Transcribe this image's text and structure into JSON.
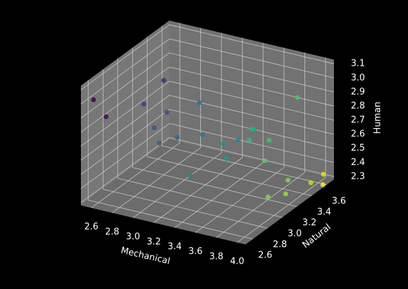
{
  "chart_data": {
    "type": "scatter3d",
    "x_label": "Mechanical",
    "y_label": "Natural",
    "z_label": "Human",
    "xlim": [
      2.5,
      4.08
    ],
    "ylim": [
      2.5,
      3.7
    ],
    "zlim": [
      2.28,
      3.13
    ],
    "xticks": [
      {
        "value": 2.6,
        "label": "2.6"
      },
      {
        "value": 2.8,
        "label": "2.8"
      },
      {
        "value": 3.0,
        "label": "3.0"
      },
      {
        "value": 3.2,
        "label": "3.2"
      },
      {
        "value": 3.4,
        "label": "3.4"
      },
      {
        "value": 3.6,
        "label": "3.6"
      },
      {
        "value": 3.8,
        "label": "3.8"
      },
      {
        "value": 4.0,
        "label": "4.0"
      }
    ],
    "yticks": [
      {
        "value": 2.6,
        "label": "2.6"
      },
      {
        "value": 2.8,
        "label": "2.8"
      },
      {
        "value": 3.0,
        "label": "3.0"
      },
      {
        "value": 3.2,
        "label": "3.2"
      },
      {
        "value": 3.4,
        "label": "3.4"
      },
      {
        "value": 3.6,
        "label": "3.6"
      }
    ],
    "zticks": [
      {
        "value": 2.3,
        "label": "2.3"
      },
      {
        "value": 2.4,
        "label": "2.4"
      },
      {
        "value": 2.5,
        "label": "2.5"
      },
      {
        "value": 2.6,
        "label": "2.6"
      },
      {
        "value": 2.7,
        "label": "2.7"
      },
      {
        "value": 2.8,
        "label": "2.8"
      },
      {
        "value": 2.9,
        "label": "2.9"
      },
      {
        "value": 3.0,
        "label": "3.0"
      },
      {
        "value": 3.1,
        "label": "3.1"
      }
    ],
    "grid": true,
    "x": [
      2.55,
      2.6,
      2.8,
      2.75,
      2.9,
      2.85,
      2.9,
      3.0,
      3.0,
      3.1,
      3.2,
      3.3,
      3.3,
      3.4,
      3.45,
      3.5,
      3.55,
      3.6,
      3.8,
      3.7,
      3.8,
      3.85,
      3.9,
      4.0,
      4.05,
      4.08
    ],
    "y": [
      2.6,
      2.7,
      3.2,
      3.0,
      3.1,
      3.0,
      3.0,
      3.1,
      3.4,
      3.3,
      3.0,
      3.5,
      3.3,
      3.2,
      3.5,
      3.4,
      3.3,
      3.5,
      3.6,
      3.3,
      3.2,
      3.4,
      3.3,
      3.5,
      3.6,
      3.55
    ],
    "z": [
      3.0,
      2.85,
      2.95,
      2.85,
      2.78,
      2.7,
      2.6,
      2.62,
      2.75,
      2.58,
      2.42,
      2.5,
      2.55,
      2.5,
      2.6,
      2.65,
      2.62,
      2.55,
      2.85,
      2.5,
      2.3,
      2.35,
      2.3,
      2.32,
      2.35,
      2.3
    ],
    "colors": [
      "#440154",
      "#46085c",
      "#472d7b",
      "#443a83",
      "#3e4989",
      "#3b528b",
      "#355f8d",
      "#31688e",
      "#2c728e",
      "#2a788e",
      "#27808e",
      "#23898e",
      "#21918c",
      "#1f998a",
      "#22a785",
      "#2ab07f",
      "#35b779",
      "#44bf70",
      "#4ac16d",
      "#5ec962",
      "#7ad151",
      "#86d549",
      "#9bd93c",
      "#bddf26",
      "#dfe318",
      "#fde725"
    ]
  }
}
